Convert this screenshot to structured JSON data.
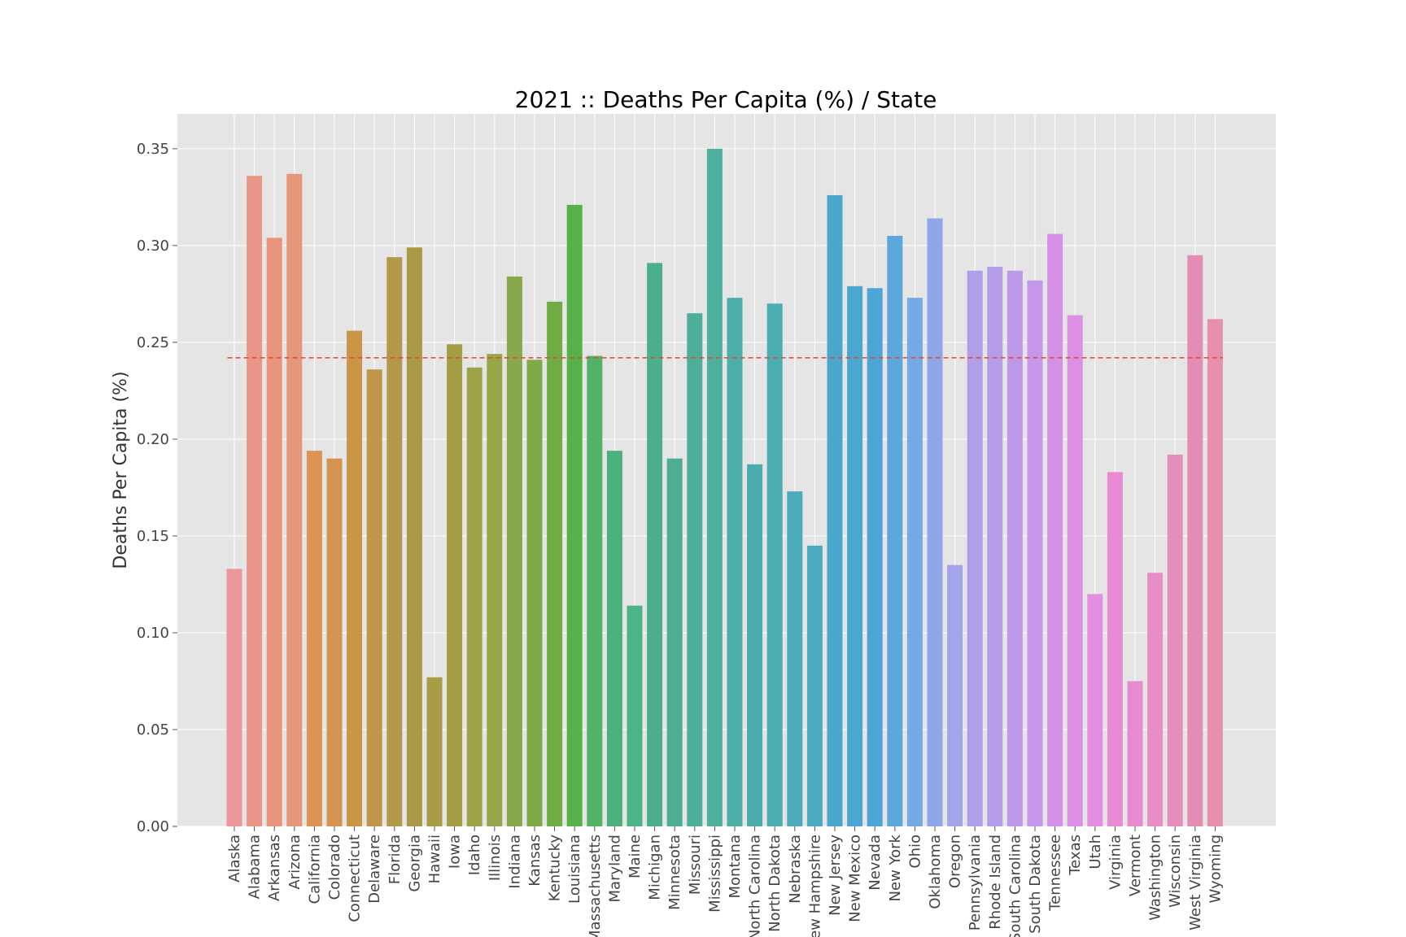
{
  "chart_data": {
    "type": "bar",
    "title": "2021 :: Deaths Per Capita (%) / State",
    "xlabel": "",
    "ylabel": "Deaths Per Capita (%)",
    "ylim": [
      0,
      0.368
    ],
    "yticks": [
      "0.00",
      "0.05",
      "0.10",
      "0.15",
      "0.20",
      "0.25",
      "0.30",
      "0.35"
    ],
    "grid": true,
    "background": "#e5e5e5",
    "reference_line": {
      "value": 0.242,
      "color": "#e24a33",
      "style": "dashed"
    },
    "categories": [
      "Alaska",
      "Alabama",
      "Arkansas",
      "Arizona",
      "California",
      "Colorado",
      "Connecticut",
      "Delaware",
      "Florida",
      "Georgia",
      "Hawaii",
      "Iowa",
      "Idaho",
      "Illinois",
      "Indiana",
      "Kansas",
      "Kentucky",
      "Louisiana",
      "Massachusetts",
      "Maryland",
      "Maine",
      "Michigan",
      "Minnesota",
      "Missouri",
      "Mississippi",
      "Montana",
      "North Carolina",
      "North Dakota",
      "Nebraska",
      "New Hampshire",
      "New Jersey",
      "New Mexico",
      "Nevada",
      "New York",
      "Ohio",
      "Oklahoma",
      "Oregon",
      "Pennsylvania",
      "Rhode Island",
      "South Carolina",
      "South Dakota",
      "Tennessee",
      "Texas",
      "Utah",
      "Virginia",
      "Vermont",
      "Washington",
      "Wisconsin",
      "West Virginia",
      "Wyoming"
    ],
    "values": [
      0.133,
      0.336,
      0.304,
      0.337,
      0.194,
      0.19,
      0.256,
      0.236,
      0.294,
      0.299,
      0.077,
      0.249,
      0.237,
      0.244,
      0.284,
      0.241,
      0.271,
      0.321,
      0.243,
      0.194,
      0.114,
      0.291,
      0.19,
      0.265,
      0.35,
      0.273,
      0.187,
      0.27,
      0.173,
      0.145,
      0.326,
      0.279,
      0.278,
      0.305,
      0.273,
      0.314,
      0.135,
      0.287,
      0.289,
      0.287,
      0.282,
      0.306,
      0.264,
      0.12,
      0.183,
      0.075,
      0.131,
      0.192,
      0.295,
      0.262
    ],
    "colors": [
      "#eb979a",
      "#e99689",
      "#e9957e",
      "#e6967a",
      "#db9454",
      "#d49351",
      "#c99547",
      "#c1964a",
      "#b49849",
      "#aa9a47",
      "#a89c46",
      "#a39e45",
      "#9ea347",
      "#98a549",
      "#89a84c",
      "#80aa48",
      "#6fac44",
      "#56b248",
      "#52b366",
      "#4bb07c",
      "#4db389",
      "#4caf8c",
      "#4dae93",
      "#4dae99",
      "#4daf9e",
      "#4baea7",
      "#4aadab",
      "#4aadb2",
      "#4aabba",
      "#4aaac0",
      "#4aa6cb",
      "#49a7d2",
      "#4ba6d6",
      "#5ba8dd",
      "#75a9e3",
      "#8fa6e8",
      "#a4a4ea",
      "#b09ee9",
      "#b59ce9",
      "#bd98e9",
      "#c596e9",
      "#d491e6",
      "#dc8fe4",
      "#e38ee1",
      "#e98ad5",
      "#e58bd0",
      "#e88ec7",
      "#e58ebb",
      "#e28db3",
      "#e690ad"
    ]
  }
}
